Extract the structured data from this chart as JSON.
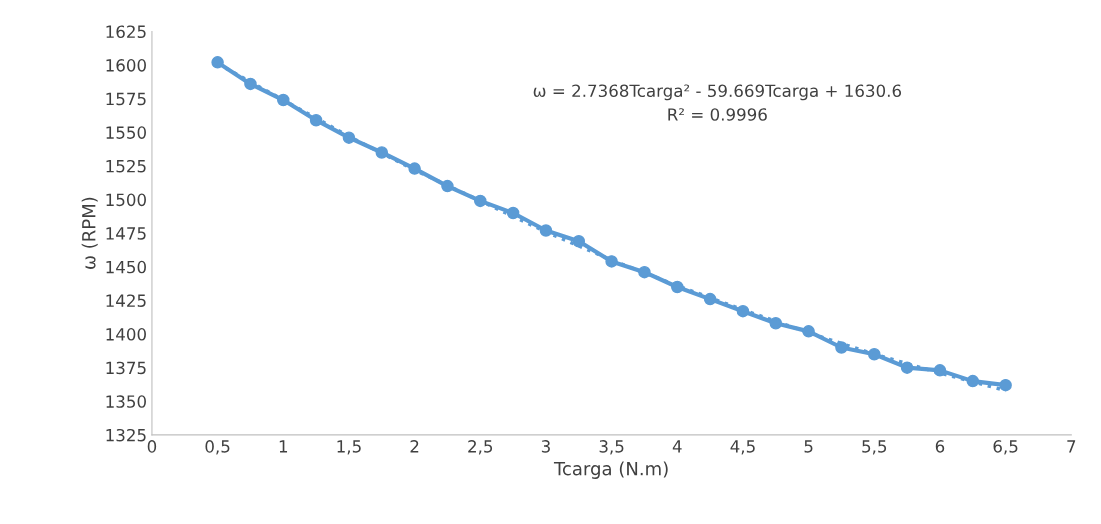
{
  "chart_data": {
    "type": "line",
    "xlabel": "Tcarga (N.m)",
    "ylabel": "ω (RPM)",
    "annotations": [
      "ω = 2.7368Tcarga² - 59.669Tcarga + 1630.6\nR² = 0.9996"
    ],
    "xlim": [
      0,
      7
    ],
    "ylim": [
      1325,
      1625
    ],
    "xticks": [
      0,
      {
        "value": 0.5,
        "label": "0,5"
      },
      1,
      {
        "value": 1.5,
        "label": "1,5"
      },
      2,
      {
        "value": 2.5,
        "label": "2,5"
      },
      3,
      {
        "value": 3.5,
        "label": "3,5"
      },
      4,
      {
        "value": 4.5,
        "label": "4,5"
      },
      5,
      {
        "value": 5.5,
        "label": "5,5"
      },
      6,
      {
        "value": 6.5,
        "label": "6,5"
      },
      7
    ],
    "yticks": [
      1325,
      1350,
      1375,
      1400,
      1425,
      1450,
      1475,
      1500,
      1525,
      1550,
      1575,
      1600,
      1625
    ],
    "grid": false,
    "legend": false,
    "series": [
      {
        "color": "#5b9bd5",
        "marker": "circle",
        "line_style": "solid",
        "x": [
          0.5,
          0.75,
          1,
          1.25,
          1.5,
          1.75,
          2,
          2.25,
          2.5,
          2.75,
          3,
          3.25,
          3.5,
          3.75,
          4,
          4.25,
          4.5,
          4.75,
          5,
          5.25,
          5.5,
          5.75,
          6,
          6.25,
          6.5
        ],
        "values": [
          1602,
          1586,
          1574,
          1559,
          1546,
          1535,
          1523,
          1510,
          1499,
          1490,
          1477,
          1469,
          1454,
          1446,
          1435,
          1426,
          1417,
          1408,
          1402,
          1390,
          1385,
          1375,
          1373,
          1365,
          1362
        ]
      },
      {
        "color": "#5b9bd5",
        "marker": "none",
        "line_style": "dotted",
        "x": [
          0.5,
          1,
          1.5,
          2,
          2.5,
          3,
          3.5,
          4,
          4.5,
          5,
          5.5,
          6,
          6.5
        ],
        "values": [
          1601,
          1574,
          1547,
          1522,
          1499,
          1476,
          1455,
          1436,
          1418,
          1401,
          1385,
          1371,
          1358
        ]
      }
    ]
  }
}
